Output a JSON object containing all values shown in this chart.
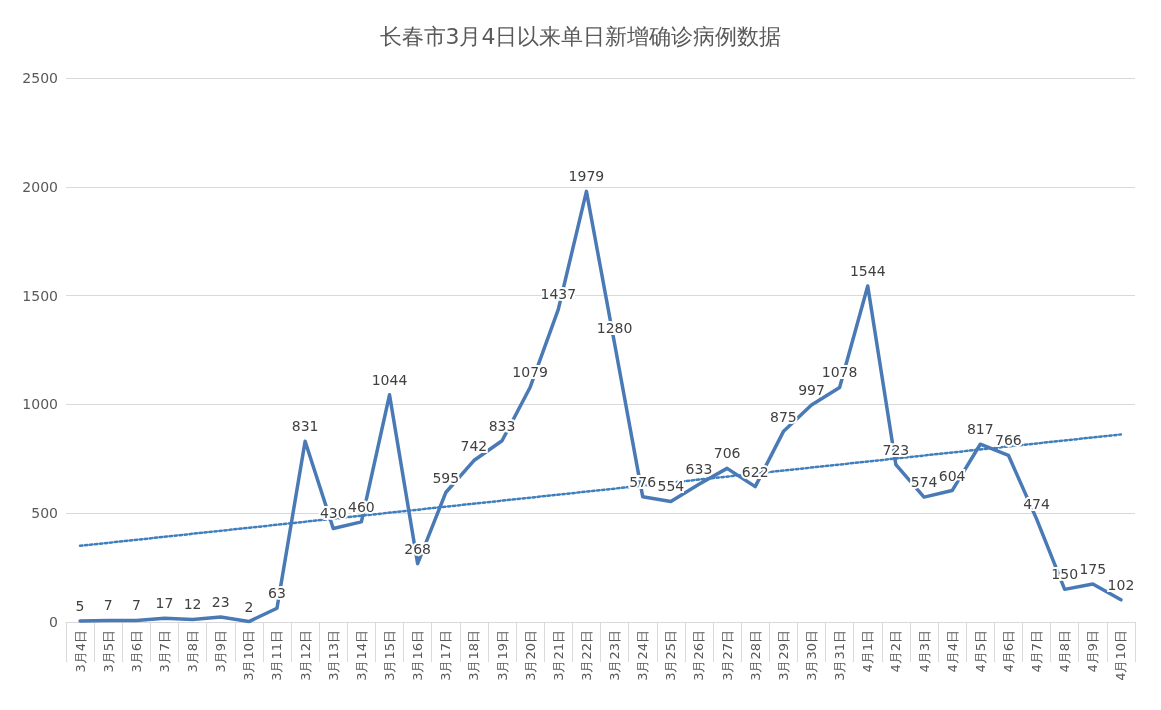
{
  "chart_data": {
    "type": "line",
    "title": "长春市3月4日以来单日新增确诊病例数据",
    "categories": [
      "3月4日",
      "3月5日",
      "3月6日",
      "3月7日",
      "3月8日",
      "3月9日",
      "3月10日",
      "3月11日",
      "3月12日",
      "3月13日",
      "3月14日",
      "3月15日",
      "3月16日",
      "3月17日",
      "3月18日",
      "3月19日",
      "3月20日",
      "3月21日",
      "3月22日",
      "3月23日",
      "3月24日",
      "3月25日",
      "3月26日",
      "3月27日",
      "3月28日",
      "3月29日",
      "3月30日",
      "3月31日",
      "4月1日",
      "4月2日",
      "4月3日",
      "4月4日",
      "4月5日",
      "4月6日",
      "4月7日",
      "4月8日",
      "4月9日",
      "4月10日"
    ],
    "series": [
      {
        "color": "#4a7ab5",
        "data_labels": true,
        "marker": "none",
        "line_style": "solid",
        "values": [
          5,
          7,
          7,
          17,
          12,
          23,
          2,
          63,
          831,
          430,
          460,
          1044,
          268,
          595,
          742,
          833,
          1079,
          1437,
          1979,
          1280,
          576,
          554,
          633,
          706,
          622,
          875,
          997,
          1078,
          1544,
          723,
          574,
          604,
          817,
          766,
          474,
          150,
          175,
          102
        ]
      },
      {
        "type": "line",
        "color": "#3f7fbf",
        "marker": "none",
        "line_style": "dotted",
        "x": [
          "3月4日",
          "4月10日"
        ],
        "values": [
          350,
          862
        ]
      }
    ],
    "ylim": [
      0,
      2500
    ],
    "yticks": [
      0,
      500,
      1000,
      1500,
      2000,
      2500
    ],
    "grid": "y"
  }
}
